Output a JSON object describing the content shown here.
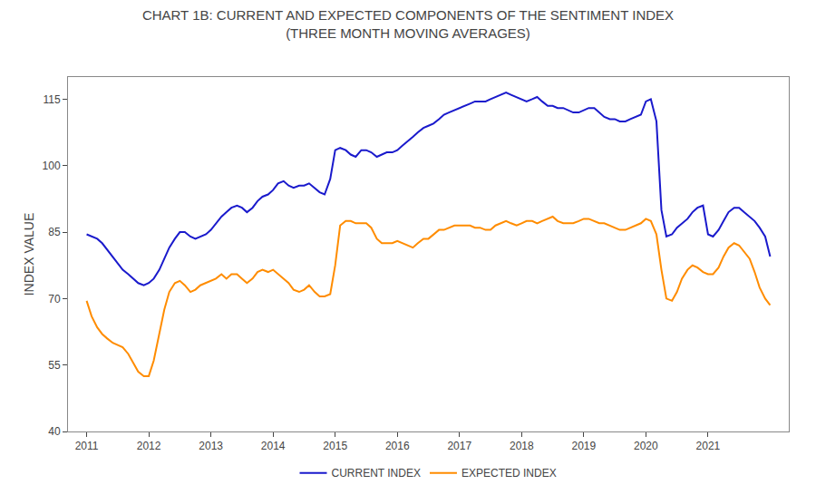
{
  "chart_data": {
    "type": "line",
    "title": "CHART 1B: CURRENT AND EXPECTED COMPONENTS OF THE SENTIMENT INDEX",
    "subtitle": "(THREE MONTH MOVING AVERAGES)",
    "y_label": "INDEX VALUE",
    "xlim": [
      2010.7,
      2022.3
    ],
    "xticks": [
      2011,
      2012,
      2013,
      2014,
      2015,
      2016,
      2017,
      2018,
      2019,
      2020,
      2021
    ],
    "ylim": [
      40,
      120
    ],
    "yticks": [
      40,
      55,
      70,
      85,
      100,
      115
    ],
    "grid": false,
    "legend": "bottom",
    "x": [
      2011.0,
      2011.08,
      2011.17,
      2011.25,
      2011.33,
      2011.42,
      2011.5,
      2011.58,
      2011.67,
      2011.75,
      2011.83,
      2011.92,
      2012.0,
      2012.08,
      2012.17,
      2012.25,
      2012.33,
      2012.42,
      2012.5,
      2012.58,
      2012.67,
      2012.75,
      2012.83,
      2012.92,
      2013.0,
      2013.08,
      2013.17,
      2013.25,
      2013.33,
      2013.42,
      2013.5,
      2013.58,
      2013.67,
      2013.75,
      2013.83,
      2013.92,
      2014.0,
      2014.08,
      2014.17,
      2014.25,
      2014.33,
      2014.42,
      2014.5,
      2014.58,
      2014.67,
      2014.75,
      2014.83,
      2014.92,
      2015.0,
      2015.08,
      2015.17,
      2015.25,
      2015.33,
      2015.42,
      2015.5,
      2015.58,
      2015.67,
      2015.75,
      2015.83,
      2015.92,
      2016.0,
      2016.08,
      2016.17,
      2016.25,
      2016.33,
      2016.42,
      2016.5,
      2016.58,
      2016.67,
      2016.75,
      2016.83,
      2016.92,
      2017.0,
      2017.08,
      2017.17,
      2017.25,
      2017.33,
      2017.42,
      2017.5,
      2017.58,
      2017.67,
      2017.75,
      2017.83,
      2017.92,
      2018.0,
      2018.08,
      2018.17,
      2018.25,
      2018.33,
      2018.42,
      2018.5,
      2018.58,
      2018.67,
      2018.75,
      2018.83,
      2018.92,
      2019.0,
      2019.08,
      2019.17,
      2019.25,
      2019.33,
      2019.42,
      2019.5,
      2019.58,
      2019.67,
      2019.75,
      2019.83,
      2019.92,
      2020.0,
      2020.08,
      2020.17,
      2020.25,
      2020.33,
      2020.42,
      2020.5,
      2020.58,
      2020.67,
      2020.75,
      2020.83,
      2020.92,
      2021.0,
      2021.08,
      2021.17,
      2021.25,
      2021.33,
      2021.42,
      2021.5,
      2021.58,
      2021.67,
      2021.75,
      2021.83,
      2021.92,
      2022.0
    ],
    "series": [
      {
        "name": "CURRENT INDEX",
        "color": "#1a1acc",
        "values": [
          84.5,
          84.0,
          83.5,
          82.5,
          81.0,
          79.5,
          78.0,
          76.5,
          75.5,
          74.5,
          73.5,
          73.0,
          73.5,
          74.5,
          76.5,
          79.0,
          81.5,
          83.5,
          85.0,
          85.0,
          84.0,
          83.5,
          84.0,
          84.5,
          85.5,
          87.0,
          88.5,
          89.5,
          90.5,
          91.0,
          90.5,
          89.5,
          90.5,
          92.0,
          93.0,
          93.5,
          94.5,
          96.0,
          96.5,
          95.5,
          95.0,
          95.5,
          95.5,
          96.0,
          95.0,
          94.0,
          93.5,
          97.0,
          103.5,
          104.0,
          103.5,
          102.5,
          102.0,
          103.5,
          103.5,
          103.0,
          102.0,
          102.5,
          103.0,
          103.0,
          103.5,
          104.5,
          105.5,
          106.5,
          107.5,
          108.5,
          109.0,
          109.5,
          110.5,
          111.5,
          112.0,
          112.5,
          113.0,
          113.5,
          114.0,
          114.5,
          114.5,
          114.5,
          115.0,
          115.5,
          116.0,
          116.5,
          116.0,
          115.5,
          115.0,
          114.5,
          115.0,
          115.5,
          114.5,
          113.5,
          113.5,
          113.0,
          113.0,
          112.5,
          112.0,
          112.0,
          112.5,
          113.0,
          113.0,
          112.0,
          111.0,
          110.5,
          110.5,
          110.0,
          110.0,
          110.5,
          111.0,
          111.5,
          114.5,
          115.0,
          110.0,
          90.0,
          84.0,
          84.5,
          86.0,
          87.0,
          88.0,
          89.5,
          90.5,
          91.0,
          84.5,
          84.0,
          85.5,
          87.5,
          89.5,
          90.5,
          90.5,
          89.5,
          88.5,
          87.5,
          86.0,
          84.0,
          79.5
        ]
      },
      {
        "name": "EXPECTED INDEX",
        "color": "#ff8c00",
        "values": [
          69.5,
          66.0,
          63.5,
          62.0,
          61.0,
          60.0,
          59.5,
          59.0,
          57.5,
          55.5,
          53.5,
          52.5,
          52.5,
          56.0,
          62.5,
          67.5,
          71.5,
          73.5,
          74.0,
          73.0,
          71.5,
          72.0,
          73.0,
          73.5,
          74.0,
          74.5,
          75.5,
          74.5,
          75.5,
          75.5,
          74.5,
          73.5,
          74.5,
          76.0,
          76.5,
          76.0,
          76.5,
          75.5,
          74.5,
          73.5,
          72.0,
          71.5,
          72.0,
          73.0,
          71.5,
          70.5,
          70.5,
          71.0,
          77.5,
          86.5,
          87.5,
          87.5,
          87.0,
          87.0,
          87.0,
          86.0,
          83.5,
          82.5,
          82.5,
          82.5,
          83.0,
          82.5,
          82.0,
          81.5,
          82.5,
          83.5,
          83.5,
          84.5,
          85.5,
          85.5,
          86.0,
          86.5,
          86.5,
          86.5,
          86.5,
          86.0,
          86.0,
          85.5,
          85.5,
          86.5,
          87.0,
          87.5,
          87.0,
          86.5,
          87.0,
          87.5,
          87.5,
          87.0,
          87.5,
          88.0,
          88.5,
          87.5,
          87.0,
          87.0,
          87.0,
          87.5,
          88.0,
          88.0,
          87.5,
          87.0,
          87.0,
          86.5,
          86.0,
          85.5,
          85.5,
          86.0,
          86.5,
          87.0,
          88.0,
          87.5,
          84.5,
          76.5,
          70.0,
          69.5,
          71.5,
          74.5,
          76.5,
          77.5,
          77.0,
          76.0,
          75.5,
          75.5,
          77.0,
          79.5,
          81.5,
          82.5,
          82.0,
          80.5,
          79.0,
          76.0,
          72.5,
          70.0,
          68.5
        ]
      }
    ]
  }
}
